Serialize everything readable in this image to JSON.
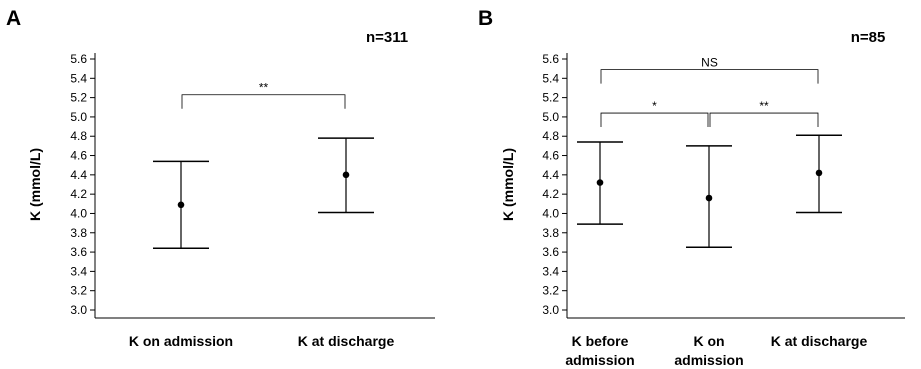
{
  "chart_data": [
    {
      "type": "errorbar",
      "panel_label": "A",
      "n_label": "n=311",
      "ylabel": "K (mmol/L)",
      "ylim": [
        3.0,
        5.6
      ],
      "yticks": [
        "3.0",
        "3.2",
        "3.4",
        "3.6",
        "3.8",
        "4.0",
        "4.2",
        "4.4",
        "4.6",
        "4.8",
        "5.0",
        "5.2",
        "5.4",
        "5.6"
      ],
      "categories": [
        [
          "K on admission"
        ],
        [
          "K at discharge"
        ]
      ],
      "means": [
        4.09,
        4.4
      ],
      "lower": [
        3.64,
        4.01
      ],
      "upper": [
        4.54,
        4.78
      ],
      "comparisons": [
        {
          "from": 0,
          "to": 1,
          "label": "**",
          "level": 5.23
        }
      ]
    },
    {
      "type": "errorbar",
      "panel_label": "B",
      "n_label": "n=85",
      "ylabel": "K (mmol/L)",
      "ylim": [
        3.0,
        5.6
      ],
      "yticks": [
        "3.0",
        "3.2",
        "3.4",
        "3.6",
        "3.8",
        "4.0",
        "4.2",
        "4.4",
        "4.6",
        "4.8",
        "5.0",
        "5.2",
        "5.4",
        "5.6"
      ],
      "categories": [
        [
          "K before",
          "admission"
        ],
        [
          "K on",
          "admission"
        ],
        [
          "K at discharge"
        ]
      ],
      "means": [
        4.32,
        4.16,
        4.42
      ],
      "lower": [
        3.89,
        3.65,
        4.01
      ],
      "upper": [
        4.74,
        4.7,
        4.81
      ],
      "comparisons": [
        {
          "from": 0,
          "to": 2,
          "label": "NS",
          "level": 5.49
        },
        {
          "from": 0,
          "to": 1,
          "label": "*",
          "level": 5.04
        },
        {
          "from": 1,
          "to": 2,
          "label": "**",
          "level": 5.04
        }
      ]
    }
  ]
}
